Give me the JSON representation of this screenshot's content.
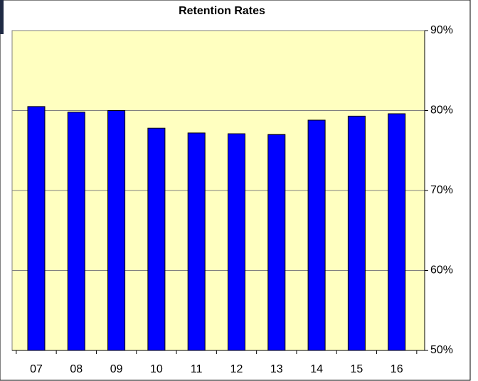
{
  "chart_data": {
    "type": "bar",
    "title": "Retention Rates",
    "categories": [
      "07",
      "08",
      "09",
      "10",
      "11",
      "12",
      "13",
      "14",
      "15",
      "16"
    ],
    "values": [
      80.5,
      79.8,
      80.0,
      77.8,
      77.2,
      77.1,
      77.0,
      78.8,
      79.3,
      79.6
    ],
    "color": "#0000ff",
    "ylim": [
      50,
      90
    ],
    "yticks": [
      {
        "value": 50,
        "label": "50%"
      },
      {
        "value": 60,
        "label": "60%"
      },
      {
        "value": 70,
        "label": "70%"
      },
      {
        "value": 80,
        "label": "80%"
      },
      {
        "value": 90,
        "label": "90%"
      }
    ],
    "grid": true,
    "y_axis_side": "right",
    "background": "#ffffc0"
  }
}
